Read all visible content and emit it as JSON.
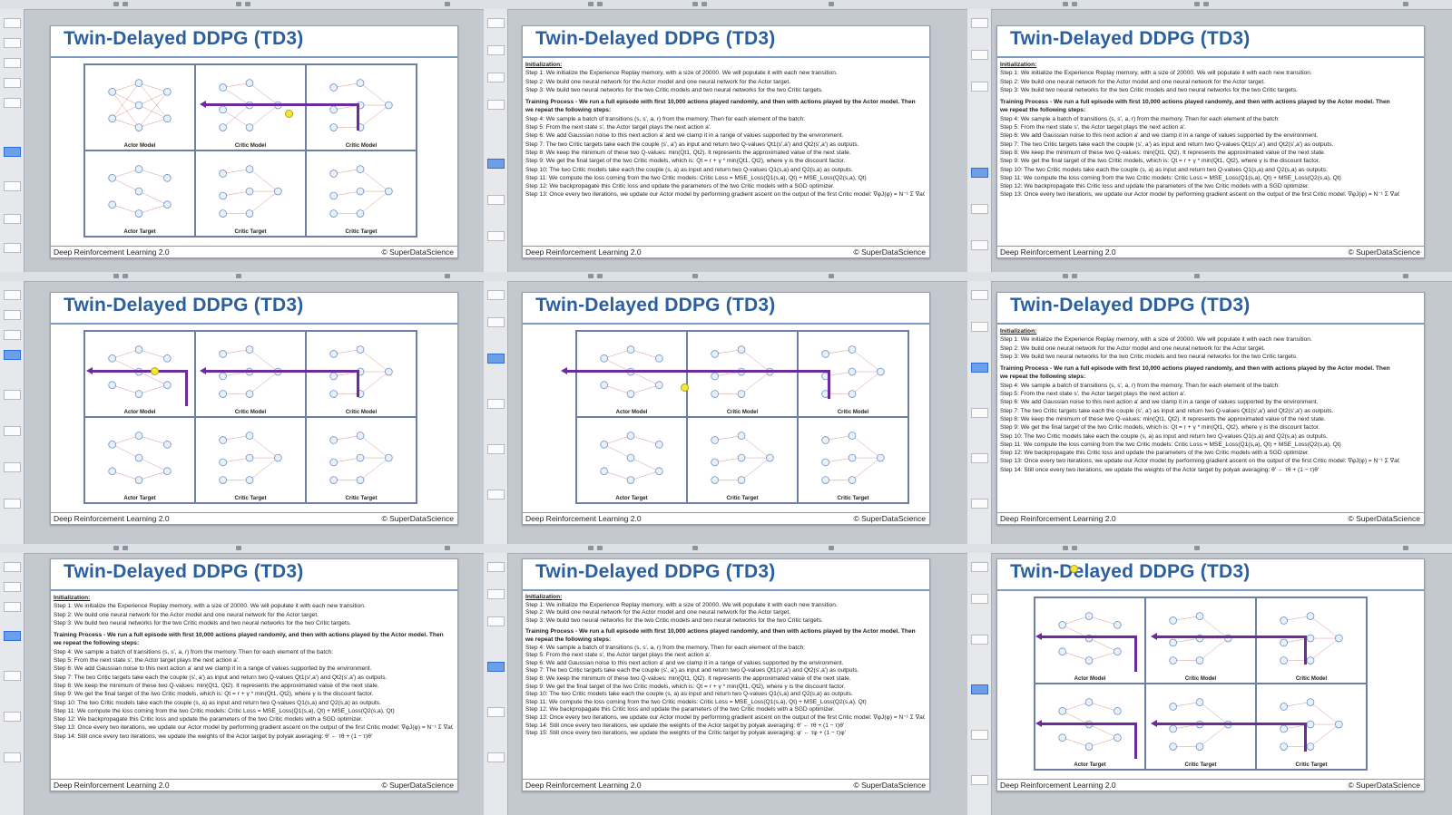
{
  "slide_title": "Twin-Delayed DDPG (TD3)",
  "footer_left": "Deep Reinforcement Learning 2.0",
  "footer_right": "© SuperDataScience",
  "net_labels": {
    "actor_model": "Actor Model",
    "critic_model": "Critic Model",
    "actor_target": "Actor Target",
    "critic_target": "Critic Target"
  },
  "text": {
    "init_heading": "Initialization:",
    "step1": "Step 1: We initialize the Experience Replay memory, with a size of 20000. We will populate it with each new transition.",
    "step2": "Step 2: We build one neural network for the Actor model and one neural network for the Actor target.",
    "step3": "Step 3: We build two neural networks for the two Critic models and two neural networks for the two Critic targets.",
    "training": "Training Process - We run a full episode with first 10,000 actions played randomly, and then with actions played by the Actor model. Then we repeat the following steps:",
    "step4": "Step 4: We sample a batch of transitions (s, s', a, r) from the memory. Then for each element of the batch:",
    "step5": "Step 5: From the next state s', the Actor target plays the next action a'.",
    "step6": "Step 6: We add Gaussian noise to this next action a' and we clamp it in a range of values supported by the environment.",
    "step7": "Step 7: The two Critic targets take each the couple (s', a') as input and return two Q-values Qt1(s',a') and Qt2(s',a') as outputs.",
    "step8": "Step 8: We keep the minimum of these two Q-values: min(Qt1, Qt2). It represents the approximated value of the next state.",
    "step9": "Step 9: We get the final target of the two Critic models, which is: Qt = r + γ * min(Qt1, Qt2), where γ is the discount factor.",
    "step10": "Step 10: The two Critic models take each the couple (s, a) as input and return two Q-values Q1(s,a) and Q2(s,a) as outputs.",
    "step11": "Step 11: We compute the loss coming from the two Critic models: Critic Loss = MSE_Loss(Q1(s,a), Qt) + MSE_Loss(Q2(s,a), Qt)",
    "step12": "Step 12: We backpropagate this Critic loss and update the parameters of the two Critic models with a SGD optimizer.",
    "step13": "Step 13: Once every two iterations, we update our Actor model by performing gradient ascent on the output of the first Critic model: ∇φJ(φ) = N⁻¹ Σ ∇aQθ1(s,a)|a=πφ(s) ∇φπφ(s), where φ and θ1 are resp. the weights of the Actor and the Critic.",
    "step14": "Step 14: Still once every two iterations, we update the weights of the Actor target by polyak averaging: θ' ← τθ + (1 − τ)θ'",
    "step15": "Step 15: Still once every two iterations, we update the weights of the Critic target by polyak averaging: φ' ← τφ + (1 − τ)φ'"
  },
  "colors": {
    "title": "#2b5f9e",
    "arrow": "#6b2c9a",
    "accent": "#7c9ac6"
  }
}
